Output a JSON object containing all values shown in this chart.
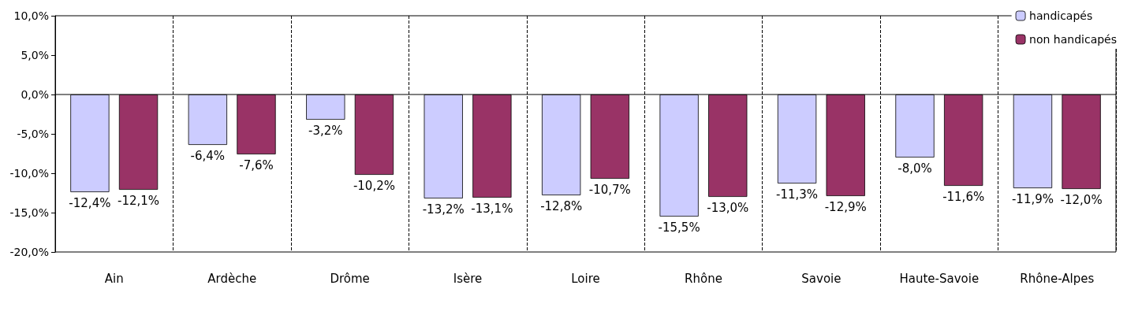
{
  "chart_data": {
    "type": "bar",
    "categories": [
      "Ain",
      "Ardèche",
      "Drôme",
      "Isère",
      "Loire",
      "Rhône",
      "Savoie",
      "Haute-Savoie",
      "Rhône-Alpes"
    ],
    "series": [
      {
        "name": "handicapés",
        "color": "#ccccff",
        "values": [
          -12.4,
          -6.4,
          -3.2,
          -13.2,
          -12.8,
          -15.5,
          -11.3,
          -8.0,
          -11.9
        ],
        "value_labels": [
          "-12,4%",
          "-6,4%",
          "-3,2%",
          "-13,2%",
          "-12,8%",
          "-15,5%",
          "-11,3%",
          "-8,0%",
          "-11,9%"
        ]
      },
      {
        "name": "non handicapés",
        "color": "#993366",
        "values": [
          -12.1,
          -7.6,
          -10.2,
          -13.1,
          -10.7,
          -13.0,
          -12.9,
          -11.6,
          -12.0
        ],
        "value_labels": [
          "-12,1%",
          "-7,6%",
          "-10,2%",
          "-13,1%",
          "-10,7%",
          "-13,0%",
          "-12,9%",
          "-11,6%",
          "-12,0%"
        ]
      }
    ],
    "ylim": [
      -20,
      10
    ],
    "yticks": [
      {
        "value": -20,
        "label": "-20,0%"
      },
      {
        "value": -15,
        "label": "-15,0%"
      },
      {
        "value": -10,
        "label": "-10,0%"
      },
      {
        "value": -5,
        "label": "-5,0%"
      },
      {
        "value": 0,
        "label": "0,0%"
      },
      {
        "value": 5,
        "label": "5,0%"
      },
      {
        "value": 10,
        "label": "10,0%"
      }
    ],
    "grid": "x",
    "line_style": "dashed",
    "legend": "top right"
  }
}
